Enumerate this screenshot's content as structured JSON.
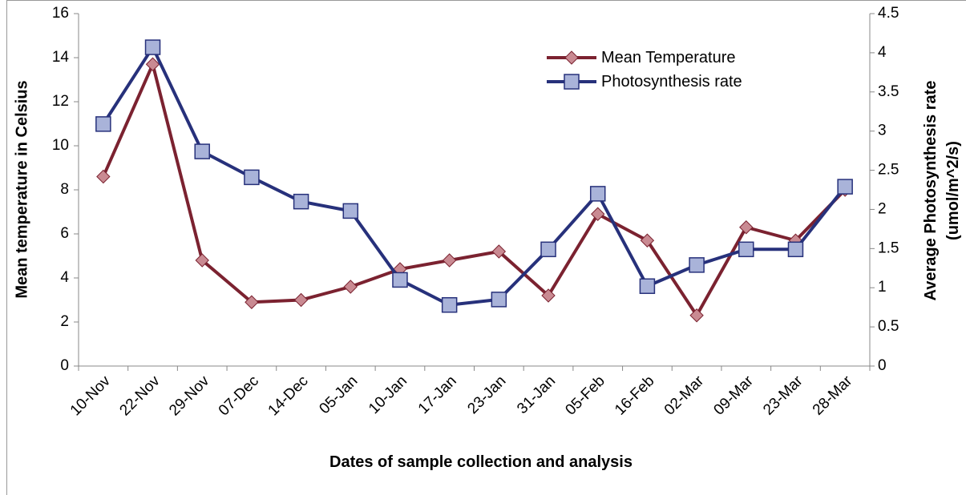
{
  "chart_data": {
    "type": "line",
    "x_label": "Dates of sample collection and analysis",
    "y_label": "Mean temperature in Celsius",
    "y2_label": "Average Photosynthesis rate (umol/m^2/s)",
    "categories": [
      "10-Nov",
      "22-Nov",
      "29-Nov",
      "07-Dec",
      "14-Dec",
      "05-Jan",
      "10-Jan",
      "17-Jan",
      "23-Jan",
      "31-Jan",
      "05-Feb",
      "16-Feb",
      "02-Mar",
      "09-Mar",
      "23-Mar",
      "28-Mar"
    ],
    "series": [
      {
        "name": "Mean Temperature",
        "color": "#7b2230",
        "marker": "diamond",
        "marker_fill": "#c98a92",
        "values": [
          8.6,
          13.7,
          4.8,
          2.9,
          3.0,
          3.6,
          4.4,
          4.8,
          5.2,
          3.2,
          6.9,
          5.7,
          2.3,
          6.3,
          5.7,
          8.0
        ]
      },
      {
        "name": "Photosynthesis rate",
        "color": "#27317b",
        "marker": "square",
        "marker_fill": "#a9b3d9",
        "axis": "y2",
        "values": [
          3.09,
          4.07,
          2.74,
          2.41,
          2.1,
          1.98,
          1.1,
          0.78,
          0.85,
          1.49,
          2.2,
          1.02,
          1.29,
          1.49,
          1.49,
          2.29
        ]
      }
    ],
    "ylim": [
      0,
      16
    ],
    "yticks": [
      0,
      2,
      4,
      6,
      8,
      10,
      12,
      14,
      16
    ],
    "y2lim": [
      0,
      4.5
    ],
    "y2ticks": [
      0,
      0.5,
      1,
      1.5,
      2,
      2.5,
      3,
      3.5,
      4,
      4.5
    ],
    "grid": false,
    "legend": "top-right"
  }
}
